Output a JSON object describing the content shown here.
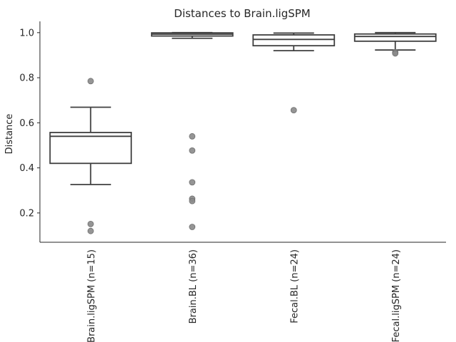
{
  "chart_data": {
    "type": "box",
    "title": "Distances to Brain.ligSPM",
    "xlabel": "",
    "ylabel": "Distance",
    "ylim": [
      0.07,
      1.05
    ],
    "yticks": [
      0.2,
      0.4,
      0.6,
      0.8,
      1.0
    ],
    "yticklabels": [
      "0.2",
      "0.4",
      "0.6",
      "0.8",
      "1.0"
    ],
    "grid": false,
    "categories": [
      "Brain.ligSPM (n=15)",
      "Brain.BL (n=36)",
      "Fecal.BL (n=24)",
      "Fecal.ligSPM (n=24)"
    ],
    "boxes": [
      {
        "q1": 0.42,
        "median": 0.54,
        "q3": 0.557,
        "whisker_low": 0.326,
        "whisker_high": 0.669,
        "outliers": [
          0.785,
          0.151,
          0.12
        ]
      },
      {
        "q1": 0.985,
        "median": 0.993,
        "q3": 0.999,
        "whisker_low": 0.975,
        "whisker_high": 1.0,
        "outliers": [
          0.54,
          0.477,
          0.336,
          0.263,
          0.253,
          0.138
        ]
      },
      {
        "q1": 0.942,
        "median": 0.97,
        "q3": 0.99,
        "whisker_low": 0.92,
        "whisker_high": 0.998,
        "outliers": [
          0.656
        ]
      },
      {
        "q1": 0.962,
        "median": 0.983,
        "q3": 0.994,
        "whisker_low": 0.923,
        "whisker_high": 1.0,
        "outliers": [
          0.913,
          0.908
        ]
      }
    ],
    "colors": {
      "line": "#3f3f3f",
      "box_fill": "#ffffff",
      "outlier": "#8a8a8a",
      "axis": "#262626"
    }
  }
}
